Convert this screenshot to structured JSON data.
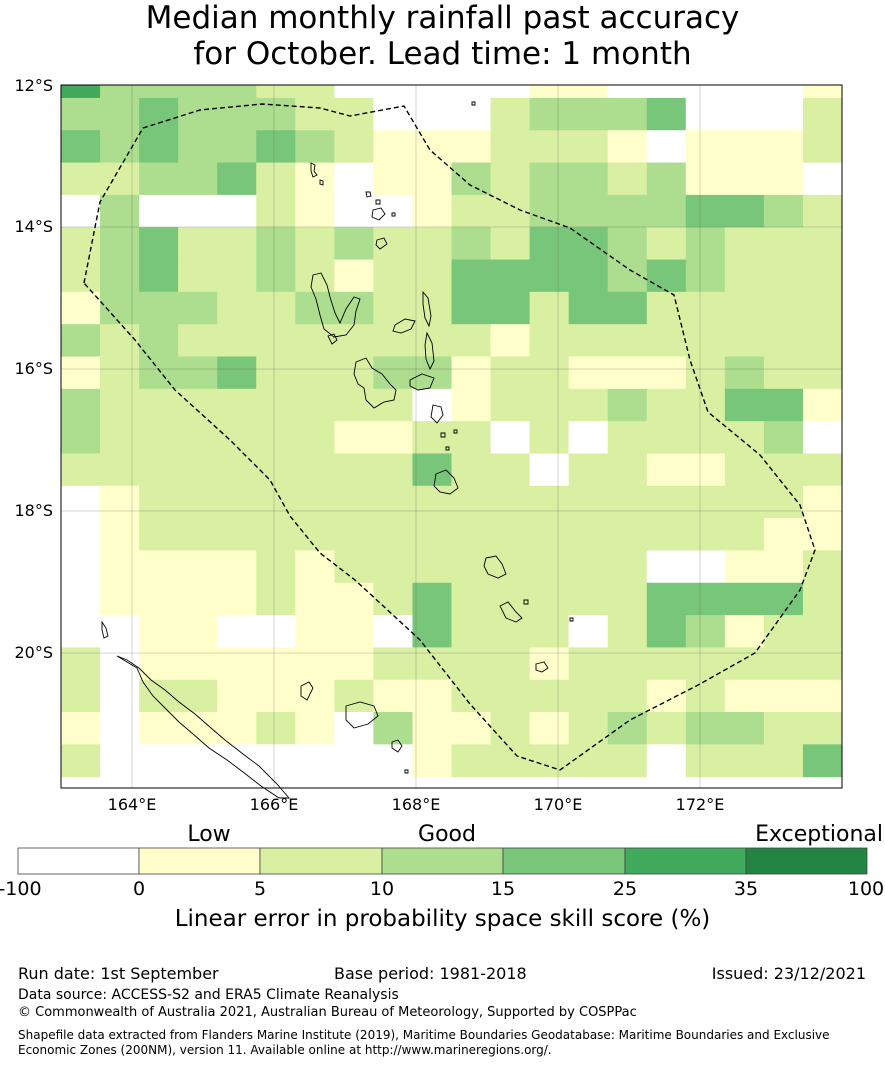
{
  "title": {
    "line1": "Median monthly rainfall past accuracy",
    "line2": "for October. Lead time: 1 month"
  },
  "map": {
    "lat_labels": [
      "12°S",
      "14°S",
      "16°S",
      "18°S",
      "20°S"
    ],
    "lon_labels": [
      "164°E",
      "166°E",
      "168°E",
      "170°E",
      "172°E"
    ],
    "grid_classes_rows": [
      "53333220000011000001",
      "33433322000233340002",
      "43433432111222101112",
      "22334210113233231110",
      "03000210012233334432",
      "23422323223244323222",
      "23422321224444343222",
      "13332233224424422222",
      "32322222222122222222",
      "12334222331221112322",
      "32222222201222322441",
      "32222221122020222230",
      "22222222242202211222",
      "01222222222222222221",
      "01222222222222222211",
      "01111212222222200112",
      "01111211242222244442",
      "00110011042220243122",
      "20111111222212222222",
      "20221112112222212111",
      "10111210311212323322",
      "20000000012222202224"
    ]
  },
  "colorbar": {
    "category_labels": [
      "Low",
      "Good",
      "Exceptional"
    ],
    "tick_labels": [
      "-100",
      "0",
      "5",
      "10",
      "15",
      "25",
      "35",
      "100"
    ],
    "colors": [
      "#ffffff",
      "#ffffcc",
      "#d9f0a3",
      "#addd8e",
      "#78c679",
      "#41ab5d",
      "#238443"
    ],
    "label": "Linear error in probability space skill score (%)"
  },
  "footer": {
    "run_date": "Run date: 1st September",
    "base_period": "Base period: 1981-2018",
    "issued": "Issued: 23/12/2021",
    "data_source": "Data source: ACCESS-S2 and ERA5 Climate Reanalysis",
    "copyright": "© Commonwealth of Australia 2021, Australian Bureau of Meteorology, Supported by COSPPac",
    "shapefile_line1": "Shapefile data extracted from Flanders Marine Institute (2019), Maritime Boundaries Geodatabase: Maritime Boundaries and Exclusive",
    "shapefile_line2": "Economic Zones (200NM), version 11. Available online at http://www.marineregions.org/."
  }
}
